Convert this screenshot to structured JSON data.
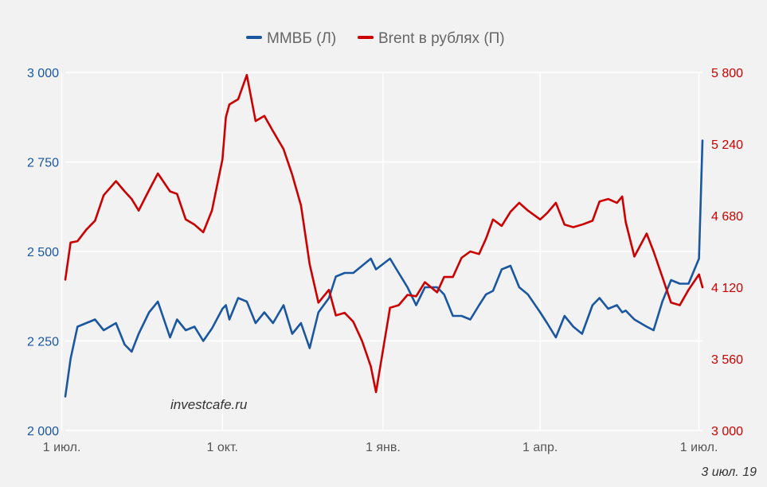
{
  "chart_data": {
    "type": "line",
    "x_range": [
      "2018-07-03",
      "2019-07-03"
    ],
    "x_ticks": [
      "1 июл.",
      "1 окт.",
      "1 янв.",
      "1 апр.",
      "1 июл."
    ],
    "y_left": {
      "ticks": [
        "2 000",
        "2 250",
        "2 500",
        "2 750",
        "3 000"
      ],
      "ylim": [
        2000,
        3000
      ],
      "color": "#1a57a0"
    },
    "y_right": {
      "ticks": [
        "3 000",
        "3 560",
        "4 120",
        "4 680",
        "5 240",
        "5 800"
      ],
      "ylim": [
        3000,
        5800
      ],
      "color": "#cc0000"
    },
    "legend_position": "top-center",
    "grid": true,
    "series": [
      {
        "name": "ММВБ (Л)",
        "axis": "left",
        "color": "#1a57a0",
        "x": [
          "2018-07-03",
          "2018-07-06",
          "2018-07-10",
          "2018-07-15",
          "2018-07-20",
          "2018-07-25",
          "2018-08-01",
          "2018-08-06",
          "2018-08-10",
          "2018-08-14",
          "2018-08-20",
          "2018-08-25",
          "2018-09-01",
          "2018-09-05",
          "2018-09-10",
          "2018-09-15",
          "2018-09-20",
          "2018-09-25",
          "2018-10-01",
          "2018-10-03",
          "2018-10-05",
          "2018-10-10",
          "2018-10-15",
          "2018-10-20",
          "2018-10-25",
          "2018-10-30",
          "2018-11-05",
          "2018-11-10",
          "2018-11-15",
          "2018-11-20",
          "2018-11-25",
          "2018-12-01",
          "2018-12-05",
          "2018-12-10",
          "2018-12-15",
          "2018-12-20",
          "2018-12-25",
          "2018-12-28",
          "2019-01-05",
          "2019-01-10",
          "2019-01-15",
          "2019-01-20",
          "2019-01-25",
          "2019-02-01",
          "2019-02-05",
          "2019-02-10",
          "2019-02-15",
          "2019-02-20",
          "2019-02-25",
          "2019-03-01",
          "2019-03-05",
          "2019-03-10",
          "2019-03-15",
          "2019-03-20",
          "2019-03-25",
          "2019-04-01",
          "2019-04-05",
          "2019-04-10",
          "2019-04-15",
          "2019-04-20",
          "2019-04-25",
          "2019-05-01",
          "2019-05-05",
          "2019-05-10",
          "2019-05-15",
          "2019-05-18",
          "2019-05-20",
          "2019-05-25",
          "2019-06-01",
          "2019-06-05",
          "2019-06-10",
          "2019-06-15",
          "2019-06-20",
          "2019-06-25",
          "2019-07-01",
          "2019-07-03"
        ],
        "values": [
          2095,
          2200,
          2290,
          2300,
          2310,
          2280,
          2300,
          2240,
          2220,
          2270,
          2330,
          2360,
          2260,
          2310,
          2280,
          2290,
          2250,
          2285,
          2340,
          2350,
          2310,
          2370,
          2360,
          2300,
          2330,
          2300,
          2350,
          2270,
          2300,
          2230,
          2330,
          2370,
          2430,
          2440,
          2440,
          2460,
          2480,
          2450,
          2480,
          2440,
          2400,
          2350,
          2400,
          2400,
          2380,
          2320,
          2320,
          2310,
          2350,
          2380,
          2390,
          2450,
          2460,
          2400,
          2380,
          2330,
          2300,
          2260,
          2320,
          2290,
          2270,
          2350,
          2370,
          2340,
          2350,
          2330,
          2335,
          2310,
          2290,
          2280,
          2360,
          2420,
          2410,
          2410,
          2480,
          2810
        ]
      },
      {
        "name": "Brent в рублях (П)",
        "axis": "right",
        "color": "#cc0000",
        "x": [
          "2018-07-03",
          "2018-07-06",
          "2018-07-10",
          "2018-07-15",
          "2018-07-20",
          "2018-07-25",
          "2018-08-01",
          "2018-08-06",
          "2018-08-10",
          "2018-08-14",
          "2018-08-20",
          "2018-08-25",
          "2018-09-01",
          "2018-09-05",
          "2018-09-10",
          "2018-09-15",
          "2018-09-20",
          "2018-09-25",
          "2018-10-01",
          "2018-10-03",
          "2018-10-05",
          "2018-10-10",
          "2018-10-15",
          "2018-10-20",
          "2018-10-25",
          "2018-10-30",
          "2018-11-05",
          "2018-11-10",
          "2018-11-15",
          "2018-11-20",
          "2018-11-25",
          "2018-12-01",
          "2018-12-05",
          "2018-12-10",
          "2018-12-15",
          "2018-12-20",
          "2018-12-25",
          "2018-12-28",
          "2019-01-05",
          "2019-01-10",
          "2019-01-15",
          "2019-01-20",
          "2019-01-25",
          "2019-02-01",
          "2019-02-05",
          "2019-02-10",
          "2019-02-15",
          "2019-02-20",
          "2019-02-25",
          "2019-03-01",
          "2019-03-05",
          "2019-03-10",
          "2019-03-15",
          "2019-03-20",
          "2019-03-25",
          "2019-04-01",
          "2019-04-05",
          "2019-04-10",
          "2019-04-15",
          "2019-04-20",
          "2019-04-25",
          "2019-05-01",
          "2019-05-05",
          "2019-05-10",
          "2019-05-15",
          "2019-05-18",
          "2019-05-20",
          "2019-05-25",
          "2019-06-01",
          "2019-06-05",
          "2019-06-10",
          "2019-06-15",
          "2019-06-20",
          "2019-06-25",
          "2019-07-01",
          "2019-07-03"
        ],
        "values": [
          4180,
          4470,
          4480,
          4570,
          4640,
          4840,
          4950,
          4870,
          4810,
          4720,
          4880,
          5010,
          4870,
          4850,
          4650,
          4610,
          4550,
          4720,
          5120,
          5450,
          5550,
          5590,
          5780,
          5420,
          5460,
          5340,
          5200,
          5000,
          4760,
          4300,
          4000,
          4100,
          3900,
          3920,
          3850,
          3700,
          3500,
          3300,
          3960,
          3980,
          4060,
          4050,
          4160,
          4080,
          4200,
          4200,
          4350,
          4400,
          4380,
          4500,
          4650,
          4600,
          4710,
          4780,
          4720,
          4650,
          4700,
          4780,
          4610,
          4590,
          4610,
          4640,
          4790,
          4810,
          4780,
          4830,
          4630,
          4360,
          4540,
          4400,
          4200,
          4000,
          3980,
          4100,
          4220,
          4120
        ]
      }
    ]
  },
  "watermark": "investcafe.ru",
  "date_note": "3 июл. 19"
}
